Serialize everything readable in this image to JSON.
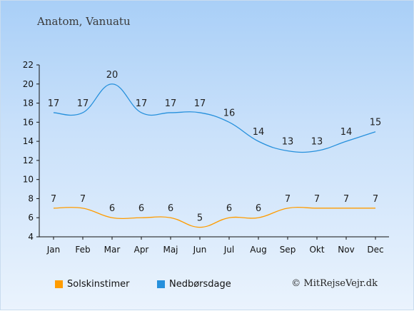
{
  "header": {
    "title": "Anatom, Vanuatu"
  },
  "chart_data": {
    "type": "line",
    "categories": [
      "Jan",
      "Feb",
      "Mar",
      "Apr",
      "Maj",
      "Jun",
      "Jul",
      "Aug",
      "Sep",
      "Okt",
      "Nov",
      "Dec"
    ],
    "ylim": [
      4,
      22
    ],
    "yticks": [
      4,
      6,
      8,
      10,
      12,
      14,
      16,
      18,
      20,
      22
    ],
    "grid": false,
    "legend_position": "bottom-left",
    "series": [
      {
        "name": "Solskinstimer",
        "color": "#ff9c00",
        "values": [
          7,
          7,
          6,
          6,
          6,
          5,
          6,
          6,
          7,
          7,
          7,
          7
        ]
      },
      {
        "name": "Nedbørsdage",
        "color": "#2690dc",
        "values": [
          17,
          17,
          20,
          17,
          17,
          17,
          16,
          14,
          13,
          13,
          14,
          15
        ]
      }
    ]
  },
  "footer": {
    "credit": "© MitRejseVejr.dk"
  }
}
